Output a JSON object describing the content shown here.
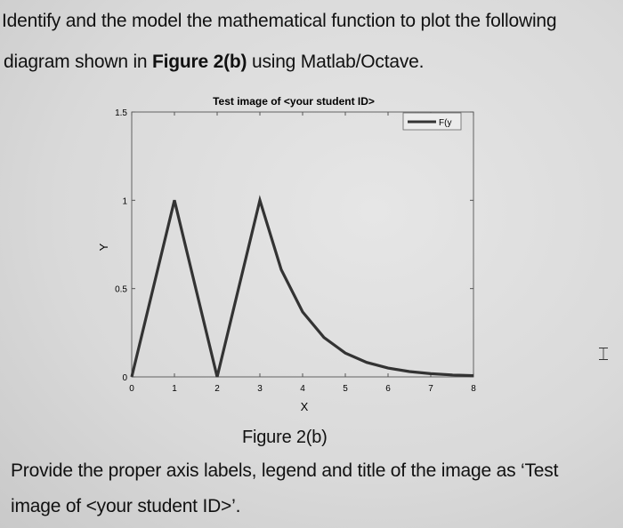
{
  "question": {
    "line1": "Identify and the model the mathematical function to plot the following",
    "line2_pre": "diagram shown in ",
    "line2_bold": "Figure 2(b)",
    "line2_post": " using Matlab/Octave.",
    "caption": "Figure 2(b)",
    "line3": "Provide the proper axis labels, legend and title of the image as ‘Test",
    "line4": "image of <your student ID>’."
  },
  "cursor_icon": "text-cursor-icon",
  "chart_data": {
    "type": "line",
    "title": "Test image of <your student ID>",
    "xlabel": "X",
    "ylabel": "Y",
    "xlim": [
      0,
      8
    ],
    "ylim": [
      0,
      1.5
    ],
    "xticks": [
      "0",
      "1",
      "2",
      "3",
      "4",
      "5",
      "6",
      "7",
      "8"
    ],
    "yticks": [
      "0",
      "0.5",
      "1",
      "1.5"
    ],
    "grid": false,
    "legend_position": "top-right",
    "line_color": "#333333",
    "series": [
      {
        "name": "F(y",
        "x": [
          0,
          1,
          2,
          3,
          3.5,
          4,
          4.5,
          5,
          5.5,
          6,
          6.5,
          7,
          7.5,
          8
        ],
        "y": [
          0,
          1,
          0,
          1,
          0.607,
          0.368,
          0.223,
          0.135,
          0.082,
          0.05,
          0.03,
          0.018,
          0.011,
          0.007
        ]
      }
    ]
  }
}
